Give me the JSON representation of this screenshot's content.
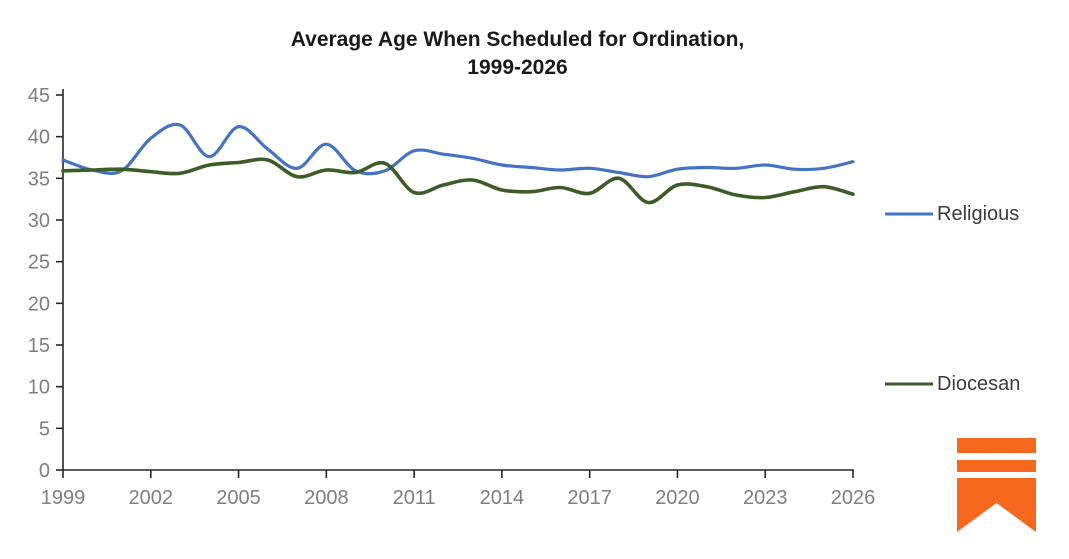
{
  "title": {
    "line1": "Average Age When Scheduled for Ordination,",
    "line2": "1999-2026"
  },
  "chart_data": {
    "type": "line",
    "title": "Average Age When Scheduled for Ordination, 1999-2026",
    "x": [
      1999,
      2000,
      2001,
      2002,
      2003,
      2004,
      2005,
      2006,
      2007,
      2008,
      2009,
      2010,
      2011,
      2012,
      2013,
      2014,
      2015,
      2016,
      2017,
      2018,
      2019,
      2020,
      2021,
      2022,
      2023,
      2024,
      2025,
      2026
    ],
    "series": [
      {
        "name": "Religious",
        "color": "#4472C4",
        "values": [
          37.2,
          36.0,
          35.9,
          39.8,
          41.4,
          37.6,
          41.2,
          38.5,
          36.2,
          39.1,
          35.9,
          35.9,
          38.3,
          37.9,
          37.4,
          36.6,
          36.3,
          36.0,
          36.2,
          35.7,
          35.2,
          36.1,
          36.3,
          36.2,
          36.6,
          36.1,
          36.2,
          37.0
        ]
      },
      {
        "name": "Diocesan",
        "color": "#3E5C28",
        "values": [
          35.9,
          36.0,
          36.1,
          35.8,
          35.6,
          36.6,
          36.9,
          37.2,
          35.2,
          36.0,
          35.7,
          36.8,
          33.3,
          34.2,
          34.8,
          33.6,
          33.4,
          33.9,
          33.2,
          35.0,
          32.1,
          34.2,
          34.0,
          33.0,
          32.7,
          33.4,
          34.0,
          33.1
        ]
      }
    ],
    "xlabel": "",
    "ylabel": "",
    "ylim": [
      0,
      45
    ],
    "y_ticks": [
      0,
      5,
      10,
      15,
      20,
      25,
      30,
      35,
      40,
      45
    ],
    "x_ticks": [
      1999,
      2002,
      2005,
      2008,
      2011,
      2014,
      2017,
      2020,
      2023,
      2026
    ],
    "grid": false,
    "smooth": true,
    "legend_position": "right",
    "axis_color": "#262626",
    "tick_label_color": "#7F7F7F"
  },
  "logo": {
    "name": "orange bookmark ribbon with two bars",
    "color": "#F5681D"
  }
}
